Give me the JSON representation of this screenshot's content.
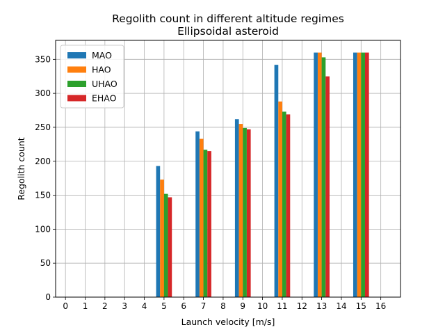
{
  "chart_data": {
    "type": "bar",
    "title": "Regolith count in different altitude regimes",
    "subtitle": "Ellipsoidal asteroid",
    "xlabel": "Launch velocity [m/s]",
    "ylabel": "Regolith count",
    "xlim": [
      -0.5,
      17
    ],
    "ylim": [
      0,
      378
    ],
    "xticks": [
      "0",
      "1",
      "2",
      "3",
      "4",
      "5",
      "6",
      "7",
      "8",
      "9",
      "10",
      "11",
      "12",
      "13",
      "14",
      "15",
      "16"
    ],
    "yticks": [
      0,
      50,
      100,
      150,
      200,
      250,
      300,
      350
    ],
    "grid": true,
    "legend_position": "top-left",
    "categories": [
      5,
      7,
      9,
      11,
      13,
      15
    ],
    "series": [
      {
        "name": "MAO",
        "color": "#1f77b4",
        "values": [
          193,
          244,
          262,
          342,
          360,
          360
        ]
      },
      {
        "name": "HAO",
        "color": "#ff7f0e",
        "values": [
          173,
          233,
          255,
          288,
          360,
          360
        ]
      },
      {
        "name": "UHAO",
        "color": "#2ca02c",
        "values": [
          152,
          217,
          249,
          273,
          353,
          360
        ]
      },
      {
        "name": "EHAO",
        "color": "#d62728",
        "values": [
          147,
          215,
          247,
          269,
          325,
          360
        ]
      }
    ]
  }
}
